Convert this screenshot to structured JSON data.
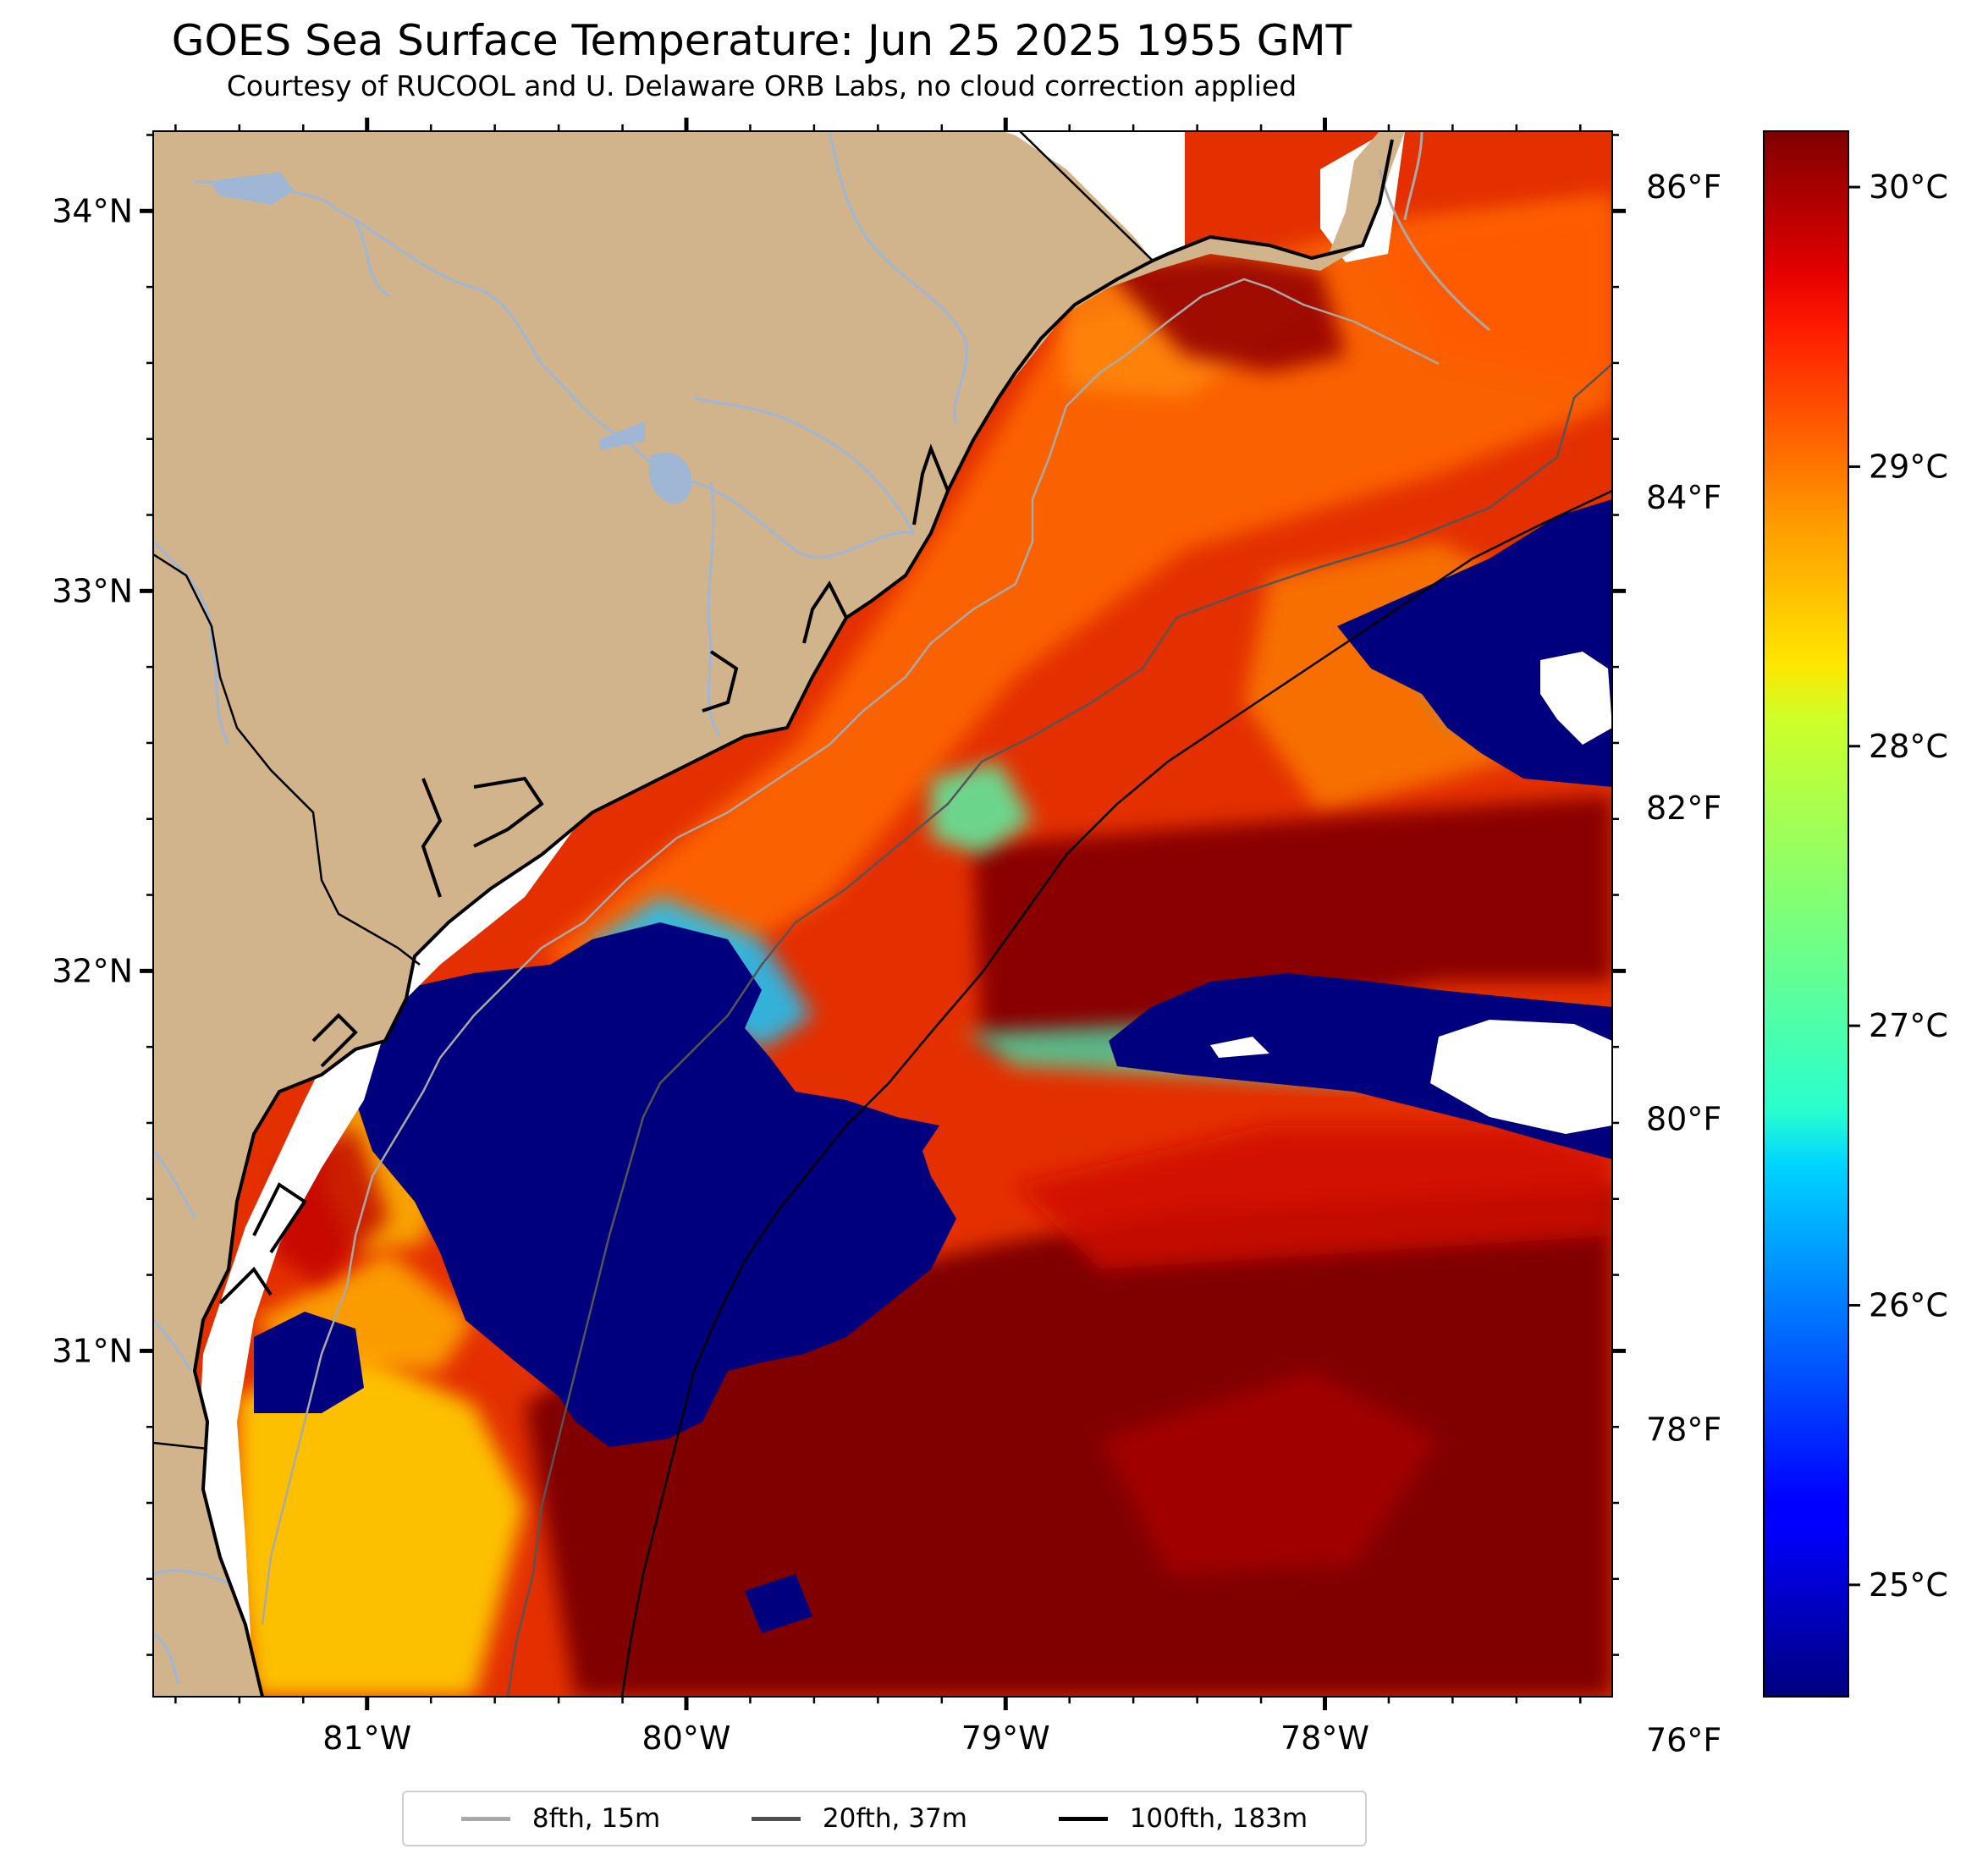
{
  "title": "GOES Sea Surface Temperature: Jun 25 2025 1955 GMT",
  "subtitle": "Courtesy of RUCOOL and U. Delaware ORB Labs, no cloud correction applied",
  "map": {
    "lon_range": [
      -81.67,
      -77.1
    ],
    "lat_range": [
      30.09,
      34.21
    ],
    "lat_ticks": [
      {
        "value": 34,
        "label": "34°N"
      },
      {
        "value": 33,
        "label": "33°N"
      },
      {
        "value": 32,
        "label": "32°N"
      },
      {
        "value": 31,
        "label": "31°N"
      }
    ],
    "lon_ticks": [
      {
        "value": -81,
        "label": "81°W"
      },
      {
        "value": -80,
        "label": "80°W"
      },
      {
        "value": -79,
        "label": "79°W"
      },
      {
        "value": -78,
        "label": "78°W"
      }
    ],
    "colors": {
      "land": "#d2b48c",
      "rivers": "#9fb6d4",
      "coast": "#000000",
      "no_data": "#ffffff"
    }
  },
  "colorbar": {
    "colormap": "jet",
    "range_c": [
      24.6,
      30.2
    ],
    "celsius_ticks": [
      {
        "value": 30,
        "label": "30°C"
      },
      {
        "value": 29,
        "label": "29°C"
      },
      {
        "value": 28,
        "label": "28°C"
      },
      {
        "value": 27,
        "label": "27°C"
      },
      {
        "value": 26,
        "label": "26°C"
      },
      {
        "value": 25,
        "label": "25°C"
      }
    ],
    "fahrenheit_ticks": [
      {
        "value": 86,
        "label": "86°F"
      },
      {
        "value": 84,
        "label": "84°F"
      },
      {
        "value": 82,
        "label": "82°F"
      },
      {
        "value": 80,
        "label": "80°F"
      },
      {
        "value": 78,
        "label": "78°F"
      },
      {
        "value": 76,
        "label": "76°F"
      }
    ]
  },
  "legend": [
    {
      "label": "8fth, 15m",
      "color": "#a9a9a9"
    },
    {
      "label": "20fth, 37m",
      "color": "#4f4f4f"
    },
    {
      "label": "100fth, 183m",
      "color": "#000000"
    }
  ]
}
